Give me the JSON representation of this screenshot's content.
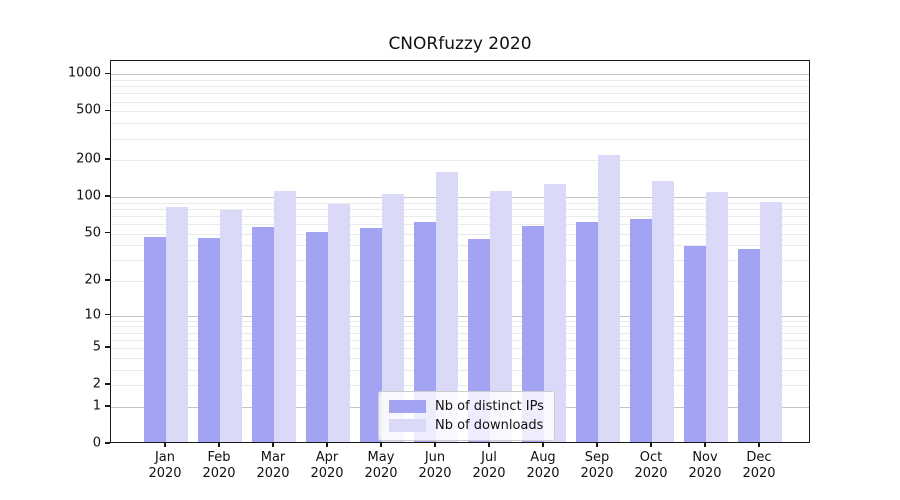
{
  "title": "CNORfuzzy 2020",
  "chart_data": {
    "type": "bar",
    "title": "CNORfuzzy 2020",
    "categories": [
      "Jan 2020",
      "Feb 2020",
      "Mar 2020",
      "Apr 2020",
      "May 2020",
      "Jun 2020",
      "Jul 2020",
      "Aug 2020",
      "Sep 2020",
      "Oct 2020",
      "Nov 2020",
      "Dec 2020"
    ],
    "series": [
      {
        "name": "Nb of distinct IPs",
        "color": "#a3a3f3",
        "values": [
          45,
          44,
          55,
          50,
          54,
          60,
          43,
          56,
          60,
          64,
          38,
          36
        ]
      },
      {
        "name": "Nb of downloads",
        "color": "#dadaf8",
        "values": [
          79,
          75,
          108,
          85,
          101,
          153,
          108,
          124,
          213,
          131,
          105,
          88
        ]
      }
    ],
    "xlabel": "",
    "ylabel": "",
    "yscale": "log1p",
    "ylim": [
      0,
      1280
    ],
    "yticks": [
      0,
      1,
      2,
      5,
      10,
      20,
      50,
      100,
      200,
      500,
      1000
    ],
    "grid": true,
    "legend_position": "lower center",
    "colors": {
      "major_grid": "#c3c3c3",
      "minor_grid": "#eaeaea",
      "spine": "#1a1a1a",
      "text": "#111111",
      "legend_border": "#cccccc",
      "legend_bg": "rgba(255,255,255,0.8)"
    }
  }
}
